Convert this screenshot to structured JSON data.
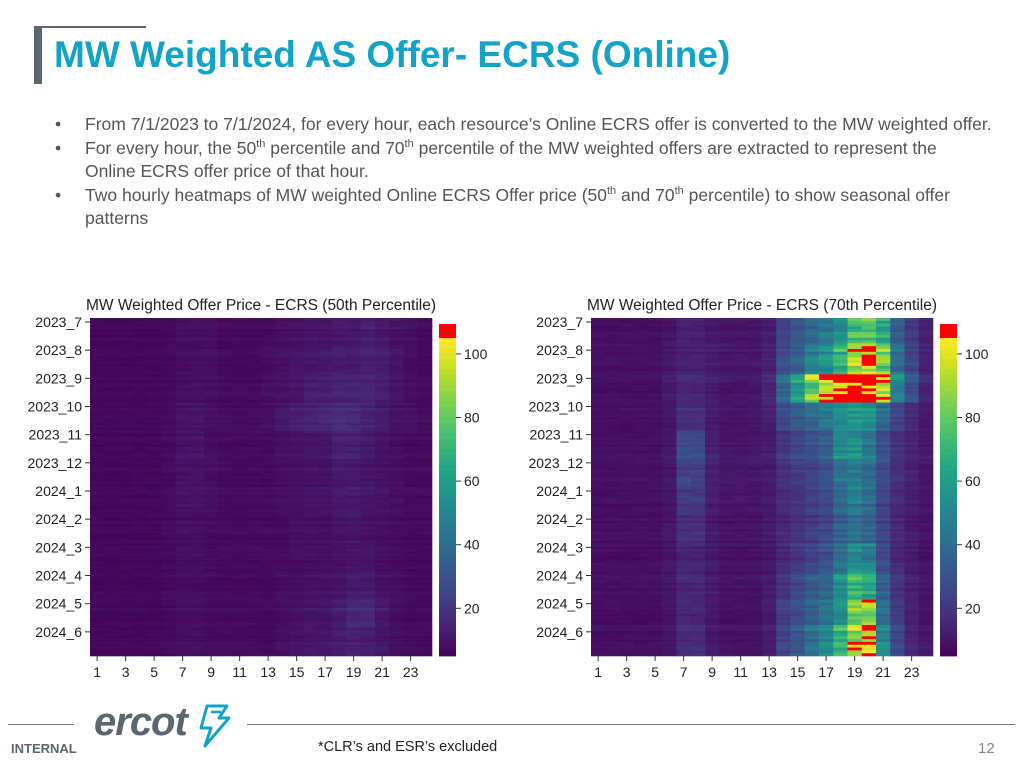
{
  "slide": {
    "title": "MW Weighted AS Offer- ECRS (Online)",
    "bullets": [
      {
        "parts": [
          "From 7/1/2023 to 7/1/2024, for every hour, each resource’s Online ECRS offer is converted to the MW weighted offer."
        ]
      },
      {
        "parts": [
          "For every hour, the 50",
          "th",
          " percentile and 70",
          "th",
          " percentile of the MW weighted offers are extracted to represent the Online ECRS offer price of that hour."
        ]
      },
      {
        "parts": [
          "Two hourly heatmaps of MW weighted Online ECRS Offer price (50",
          "th",
          " and 70",
          "th",
          " percentile) to show seasonal offer patterns"
        ]
      }
    ],
    "footer": {
      "internal_label": "INTERNAL",
      "footnote": "*CLR’s and ESR’s excluded",
      "page_number": "12",
      "logo_text": "ercot"
    }
  },
  "chart_data": [
    {
      "type": "heatmap",
      "title": "MW Weighted Offer Price - ECRS (50th Percentile)",
      "x_ticks": [
        "1",
        "3",
        "5",
        "7",
        "9",
        "11",
        "13",
        "15",
        "17",
        "19",
        "21",
        "23"
      ],
      "hours": [
        1,
        2,
        3,
        4,
        5,
        6,
        7,
        8,
        9,
        10,
        11,
        12,
        13,
        14,
        15,
        16,
        17,
        18,
        19,
        20,
        21,
        22,
        23,
        24
      ],
      "months": [
        "2023_7",
        "2023_8",
        "2023_9",
        "2023_10",
        "2023_11",
        "2023_12",
        "2024_1",
        "2024_2",
        "2024_3",
        "2024_4",
        "2024_5",
        "2024_6"
      ],
      "colorbar": {
        "colormap": "viridis",
        "min": 5,
        "max": 105,
        "ticks": [
          "20",
          "40",
          "60",
          "80",
          "100"
        ],
        "over_color": "#ff0000"
      },
      "monthly_hourly_values": [
        [
          7,
          7,
          7,
          7,
          7,
          8,
          9,
          9,
          9,
          8,
          8,
          8,
          8,
          9,
          10,
          11,
          11,
          12,
          12,
          13,
          12,
          10,
          9,
          8
        ],
        [
          7,
          7,
          7,
          7,
          7,
          8,
          9,
          9,
          9,
          8,
          8,
          8,
          9,
          10,
          11,
          12,
          12,
          13,
          13,
          14,
          13,
          11,
          9,
          8
        ],
        [
          7,
          7,
          7,
          7,
          7,
          8,
          9,
          9,
          9,
          8,
          8,
          8,
          9,
          10,
          11,
          13,
          13,
          15,
          15,
          16,
          14,
          11,
          9,
          8
        ],
        [
          7,
          7,
          7,
          7,
          7,
          8,
          10,
          10,
          9,
          8,
          8,
          8,
          9,
          11,
          13,
          15,
          15,
          17,
          16,
          14,
          12,
          10,
          9,
          8
        ],
        [
          7,
          7,
          7,
          7,
          7,
          8,
          11,
          11,
          9,
          8,
          8,
          8,
          8,
          9,
          10,
          11,
          11,
          14,
          14,
          12,
          10,
          9,
          8,
          8
        ],
        [
          7,
          7,
          7,
          7,
          7,
          8,
          10,
          10,
          9,
          8,
          8,
          8,
          8,
          9,
          9,
          10,
          10,
          12,
          12,
          11,
          10,
          9,
          8,
          8
        ],
        [
          7,
          7,
          7,
          7,
          7,
          8,
          10,
          10,
          9,
          8,
          8,
          8,
          8,
          9,
          9,
          10,
          10,
          12,
          12,
          11,
          10,
          9,
          8,
          8
        ],
        [
          7,
          7,
          7,
          7,
          7,
          8,
          9,
          9,
          8,
          8,
          8,
          8,
          8,
          8,
          9,
          9,
          9,
          10,
          11,
          10,
          9,
          8,
          8,
          8
        ],
        [
          7,
          7,
          7,
          7,
          7,
          8,
          9,
          9,
          8,
          8,
          8,
          8,
          8,
          8,
          9,
          9,
          9,
          10,
          11,
          11,
          9,
          8,
          8,
          8
        ],
        [
          7,
          7,
          7,
          7,
          7,
          8,
          9,
          9,
          8,
          8,
          8,
          8,
          8,
          9,
          9,
          10,
          10,
          11,
          13,
          13,
          10,
          9,
          8,
          8
        ],
        [
          7,
          7,
          7,
          7,
          7,
          8,
          9,
          9,
          8,
          8,
          8,
          8,
          8,
          9,
          10,
          11,
          11,
          13,
          16,
          17,
          12,
          9,
          8,
          8
        ],
        [
          7,
          7,
          7,
          7,
          7,
          8,
          9,
          9,
          8,
          8,
          8,
          8,
          8,
          9,
          10,
          11,
          11,
          13,
          14,
          13,
          11,
          9,
          8,
          8
        ]
      ]
    },
    {
      "type": "heatmap",
      "title": "MW Weighted Offer Price - ECRS (70th Percentile)",
      "x_ticks": [
        "1",
        "3",
        "5",
        "7",
        "9",
        "11",
        "13",
        "15",
        "17",
        "19",
        "21",
        "23"
      ],
      "hours": [
        1,
        2,
        3,
        4,
        5,
        6,
        7,
        8,
        9,
        10,
        11,
        12,
        13,
        14,
        15,
        16,
        17,
        18,
        19,
        20,
        21,
        22,
        23,
        24
      ],
      "months": [
        "2023_7",
        "2023_8",
        "2023_9",
        "2023_10",
        "2023_11",
        "2023_12",
        "2024_1",
        "2024_2",
        "2024_3",
        "2024_4",
        "2024_5",
        "2024_6"
      ],
      "colorbar": {
        "colormap": "viridis",
        "min": 5,
        "max": 105,
        "ticks": [
          "20",
          "40",
          "60",
          "80",
          "100"
        ],
        "over_color": "#ff0000"
      },
      "monthly_hourly_values": [
        [
          9,
          9,
          9,
          9,
          9,
          11,
          14,
          14,
          12,
          11,
          11,
          11,
          13,
          25,
          32,
          40,
          45,
          55,
          75,
          80,
          65,
          35,
          22,
          14
        ],
        [
          9,
          9,
          9,
          9,
          9,
          11,
          14,
          14,
          12,
          11,
          11,
          11,
          14,
          28,
          35,
          48,
          55,
          70,
          90,
          100,
          80,
          40,
          25,
          14
        ],
        [
          9,
          9,
          9,
          9,
          9,
          12,
          16,
          16,
          13,
          11,
          11,
          12,
          16,
          40,
          60,
          85,
          100,
          110,
          120,
          120,
          100,
          50,
          30,
          16
        ],
        [
          9,
          9,
          9,
          9,
          9,
          11,
          18,
          18,
          13,
          11,
          11,
          12,
          15,
          28,
          35,
          40,
          45,
          55,
          60,
          55,
          40,
          25,
          18,
          12
        ],
        [
          9,
          9,
          9,
          9,
          9,
          11,
          28,
          28,
          14,
          11,
          11,
          11,
          13,
          20,
          25,
          30,
          35,
          50,
          55,
          45,
          30,
          20,
          15,
          12
        ],
        [
          9,
          9,
          9,
          9,
          9,
          11,
          24,
          24,
          13,
          11,
          11,
          11,
          12,
          18,
          22,
          25,
          30,
          40,
          45,
          38,
          28,
          18,
          14,
          11
        ],
        [
          9,
          9,
          9,
          9,
          9,
          11,
          22,
          22,
          13,
          11,
          11,
          11,
          12,
          17,
          20,
          24,
          28,
          38,
          48,
          40,
          26,
          17,
          13,
          11
        ],
        [
          9,
          9,
          9,
          9,
          9,
          11,
          18,
          18,
          12,
          10,
          10,
          10,
          12,
          16,
          19,
          22,
          26,
          35,
          42,
          36,
          24,
          16,
          12,
          10
        ],
        [
          9,
          9,
          9,
          9,
          9,
          11,
          16,
          16,
          12,
          10,
          10,
          10,
          12,
          17,
          21,
          26,
          30,
          42,
          55,
          50,
          28,
          17,
          13,
          10
        ],
        [
          9,
          9,
          9,
          9,
          9,
          11,
          16,
          16,
          12,
          10,
          10,
          10,
          12,
          20,
          26,
          32,
          38,
          52,
          70,
          65,
          35,
          20,
          14,
          11
        ],
        [
          9,
          9,
          9,
          9,
          9,
          11,
          17,
          17,
          12,
          10,
          10,
          10,
          13,
          24,
          30,
          38,
          46,
          60,
          90,
          95,
          45,
          24,
          15,
          11
        ],
        [
          9,
          9,
          9,
          9,
          9,
          11,
          18,
          18,
          12,
          10,
          10,
          10,
          13,
          26,
          33,
          42,
          52,
          68,
          95,
          105,
          55,
          28,
          16,
          12
        ]
      ]
    }
  ]
}
